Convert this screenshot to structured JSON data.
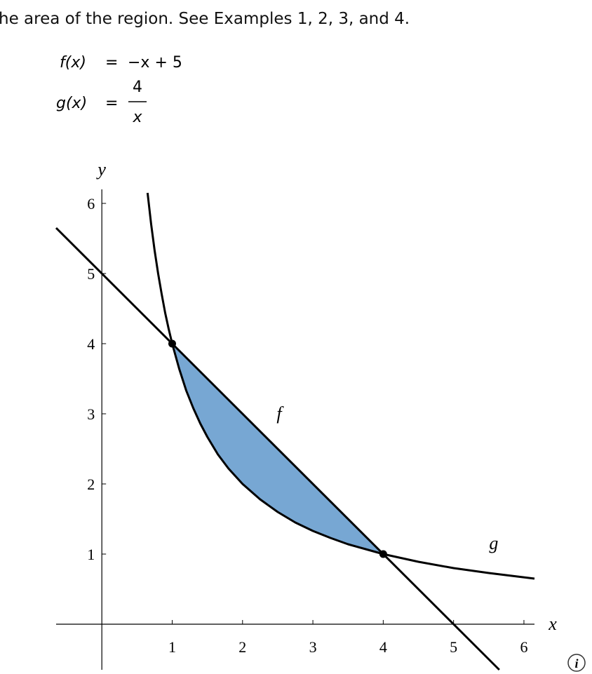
{
  "header": "he area of the region. See Examples 1, 2, 3, and 4.",
  "equations": [
    {
      "lhs": "f(x)",
      "eq": "=",
      "rhs": "−x + 5"
    },
    {
      "lhs": "g(x)",
      "eq": "=",
      "numerator": "4",
      "denominator": "x"
    }
  ],
  "chart_data": {
    "type": "line",
    "x_label": "x",
    "y_label": "y",
    "xlim": [
      -0.65,
      6.15
    ],
    "ylim": [
      -0.65,
      6.2
    ],
    "xticks": [
      1,
      2,
      3,
      4,
      5,
      6
    ],
    "yticks": [
      1,
      2,
      3,
      4,
      5,
      6
    ],
    "series": [
      {
        "name": "f",
        "color": "#000000",
        "x": [
          -0.65,
          5.65
        ],
        "values": [
          5.65,
          -0.65
        ],
        "label_at": [
          2.52,
          2.92
        ]
      },
      {
        "name": "g",
        "color": "#000000",
        "x": [
          0.65,
          0.7,
          0.75,
          0.8,
          0.85,
          0.9,
          0.95,
          1,
          1.1,
          1.2,
          1.3,
          1.4,
          1.5,
          1.65,
          1.8,
          2,
          2.25,
          2.5,
          2.75,
          3,
          3.25,
          3.5,
          3.75,
          4,
          4.5,
          5,
          5.5,
          6.15
        ],
        "values": [
          6.15,
          5.71,
          5.33,
          5,
          4.71,
          4.44,
          4.21,
          4,
          3.64,
          3.33,
          3.08,
          2.86,
          2.67,
          2.42,
          2.22,
          2,
          1.78,
          1.6,
          1.45,
          1.33,
          1.23,
          1.14,
          1.07,
          1,
          0.89,
          0.8,
          0.73,
          0.65
        ],
        "label_at": [
          5.57,
          1.07
        ]
      }
    ],
    "fill_between": {
      "x": [
        1,
        4
      ],
      "color": "#77a7d3"
    },
    "points": {
      "x": [
        1,
        4
      ],
      "values": [
        4,
        1
      ]
    }
  },
  "icon": "i"
}
